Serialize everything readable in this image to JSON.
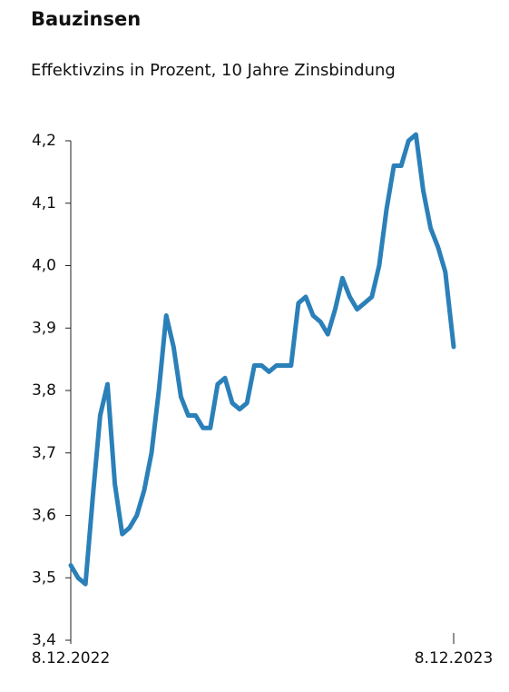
{
  "chart_data": {
    "type": "line",
    "title": "Bauzinsen",
    "subtitle": "Effektivzins in Prozent, 10 Jahre Zinsbindung",
    "x": [
      "2022-12-08",
      "2022-12-15",
      "2022-12-22",
      "2022-12-29",
      "2023-01-05",
      "2023-01-12",
      "2023-01-19",
      "2023-01-26",
      "2023-02-02",
      "2023-02-09",
      "2023-02-16",
      "2023-02-23",
      "2023-03-02",
      "2023-03-09",
      "2023-03-16",
      "2023-03-23",
      "2023-03-30",
      "2023-04-06",
      "2023-04-13",
      "2023-04-20",
      "2023-04-27",
      "2023-05-04",
      "2023-05-11",
      "2023-05-18",
      "2023-05-25",
      "2023-06-01",
      "2023-06-08",
      "2023-06-15",
      "2023-06-22",
      "2023-06-29",
      "2023-07-06",
      "2023-07-13",
      "2023-07-20",
      "2023-07-27",
      "2023-08-03",
      "2023-08-10",
      "2023-08-17",
      "2023-08-24",
      "2023-08-31",
      "2023-09-07",
      "2023-09-14",
      "2023-09-21",
      "2023-09-28",
      "2023-10-05",
      "2023-10-12",
      "2023-10-19",
      "2023-10-26",
      "2023-11-02",
      "2023-11-09",
      "2023-11-16",
      "2023-11-23",
      "2023-11-30",
      "2023-12-08"
    ],
    "series": [
      {
        "name": "Effektivzins",
        "color": "#2b80b9",
        "values": [
          3.52,
          3.5,
          3.49,
          3.63,
          3.76,
          3.81,
          3.65,
          3.57,
          3.58,
          3.6,
          3.64,
          3.7,
          3.8,
          3.92,
          3.87,
          3.79,
          3.76,
          3.76,
          3.74,
          3.74,
          3.81,
          3.82,
          3.78,
          3.77,
          3.78,
          3.84,
          3.84,
          3.83,
          3.84,
          3.84,
          3.84,
          3.94,
          3.95,
          3.92,
          3.91,
          3.89,
          3.93,
          3.98,
          3.95,
          3.93,
          3.94,
          3.95,
          4.0,
          4.09,
          4.16,
          4.16,
          4.2,
          4.21,
          4.12,
          4.06,
          4.03,
          3.99,
          3.87
        ]
      }
    ],
    "xlim": [
      "2022-12-08",
      "2023-12-08"
    ],
    "xticks": [
      {
        "value": "2022-12-08",
        "label": "8.12.2022"
      },
      {
        "value": "2023-12-08",
        "label": "8.12.2023"
      }
    ],
    "ylim": [
      3.4,
      4.2
    ],
    "yticks": [
      {
        "value": 3.4,
        "label": "3,4"
      },
      {
        "value": 3.5,
        "label": "3,5"
      },
      {
        "value": 3.6,
        "label": "3,6"
      },
      {
        "value": 3.7,
        "label": "3,7"
      },
      {
        "value": 3.8,
        "label": "3,8"
      },
      {
        "value": 3.9,
        "label": "3,9"
      },
      {
        "value": 4.0,
        "label": "4,0"
      },
      {
        "value": 4.1,
        "label": "4,1"
      },
      {
        "value": 4.2,
        "label": "4,2"
      }
    ],
    "grid": false
  }
}
